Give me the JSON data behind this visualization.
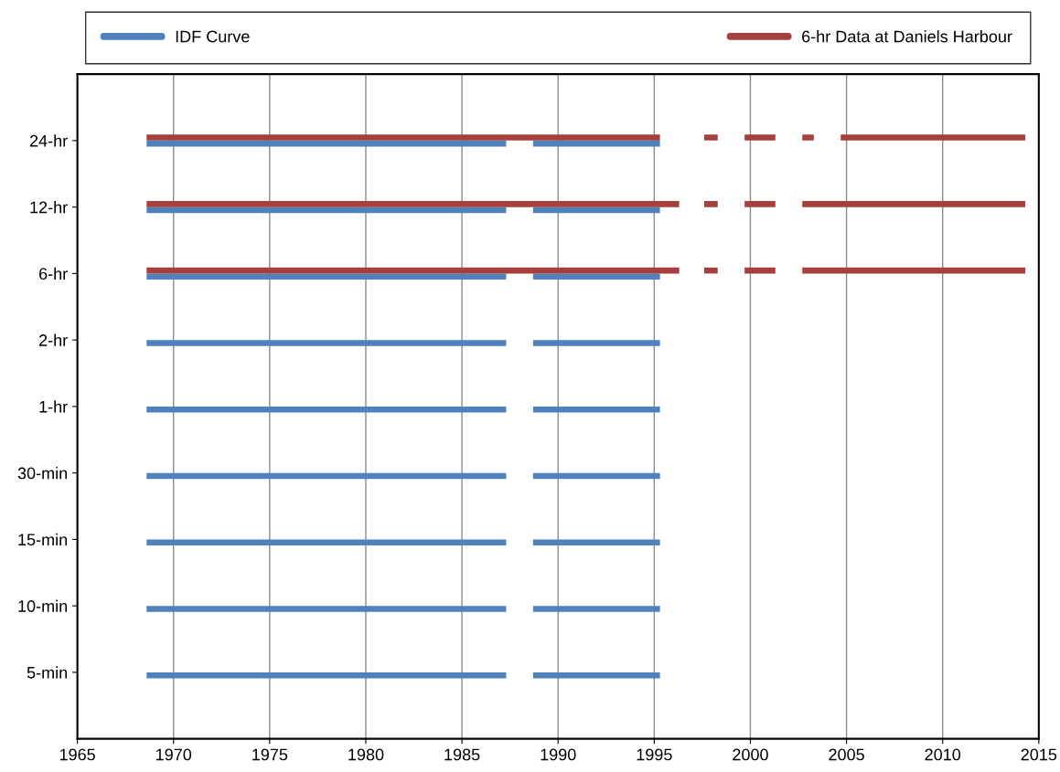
{
  "chart_data": {
    "type": "bar",
    "orientation": "horizontal",
    "categories": [
      "24-hr",
      "12-hr",
      "6-hr",
      "2-hr",
      "1-hr",
      "30-min",
      "15-min",
      "10-min",
      "5-min"
    ],
    "xlim": [
      1965,
      2015
    ],
    "xticks": [
      1965,
      1970,
      1975,
      1980,
      1985,
      1990,
      1995,
      2000,
      2005,
      2010,
      2015
    ],
    "grid": "x",
    "legend": "top",
    "series": [
      {
        "name": "IDF Curve",
        "color": "#4f81bd",
        "base": [
          1968.6,
          1968.6,
          1968.6,
          1968.6,
          1968.6,
          1968.6,
          1968.6,
          1968.6,
          1968.6
        ],
        "values": [
          18.7,
          18.7,
          18.7,
          18.7,
          18.7,
          18.7,
          18.7,
          18.7,
          18.7
        ]
      },
      {
        "color": "#4f81bd",
        "base": [
          1988.7,
          1988.7,
          1988.7,
          1988.7,
          1988.7,
          1988.7,
          1988.7,
          1988.7,
          1988.7
        ],
        "values": [
          6.6,
          6.6,
          6.6,
          6.6,
          6.6,
          6.6,
          6.6,
          6.6,
          6.6
        ]
      },
      {
        "name": "6-hr Data at Daniels Harbour",
        "color": "#a5403d",
        "base": [
          1968.6,
          1968.6,
          1968.6,
          null,
          null,
          null,
          null,
          null,
          null
        ],
        "values": [
          26.7,
          27.7,
          27.7,
          null,
          null,
          null,
          null,
          null,
          null
        ]
      },
      {
        "color": "#a5403d",
        "base": [
          1997.6,
          1997.6,
          1997.6,
          null,
          null,
          null,
          null,
          null,
          null
        ],
        "values": [
          0.7,
          0.7,
          0.7,
          null,
          null,
          null,
          null,
          null,
          null
        ]
      },
      {
        "color": "#a5403d",
        "base": [
          1999.7,
          1999.7,
          1999.7,
          null,
          null,
          null,
          null,
          null,
          null
        ],
        "values": [
          1.6,
          1.6,
          1.6,
          null,
          null,
          null,
          null,
          null,
          null
        ]
      },
      {
        "color": "#a5403d",
        "base": [
          2002.7,
          2002.7,
          2002.7,
          null,
          null,
          null,
          null,
          null,
          null
        ],
        "values": [
          0.6,
          11.6,
          11.6,
          null,
          null,
          null,
          null,
          null,
          null
        ]
      },
      {
        "color": "#a5403d",
        "base": [
          2004.7,
          null,
          null,
          null,
          null,
          null,
          null,
          null,
          null
        ],
        "values": [
          9.6,
          null,
          null,
          null,
          null,
          null,
          null,
          null,
          null
        ]
      }
    ]
  }
}
